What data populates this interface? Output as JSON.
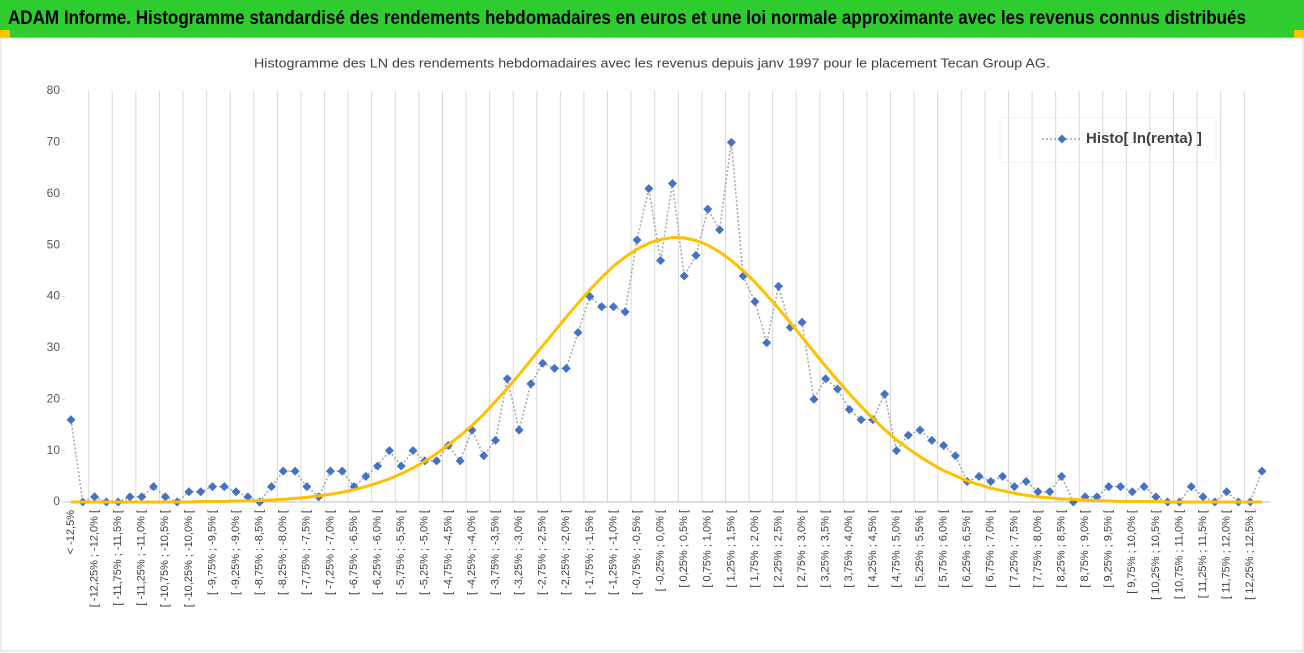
{
  "header": {
    "title": "ADAM Informe. Histogramme standardisé des rendements hebdomadaires en euros et une loi normale approximante avec les revenus connus distribués"
  },
  "chart_data": {
    "type": "line",
    "title": "Histogramme des LN des rendements hebdomadaires avec les revenus depuis janv 1997 pour le placement Tecan Group AG.",
    "categories": [
      "< -12,5%",
      null,
      "[ -12,25% ; -12,0% [",
      null,
      "[ -11,75% ; -11,5% [",
      null,
      "[ -11,25% ; -11,0% [",
      null,
      "[ -10,75% ; -10,5% [",
      null,
      "[ -10,25% ; -10,0% [",
      null,
      "[ -9,75% ; -9,5% [",
      null,
      "[ -9,25% ; -9,0% [",
      null,
      "[ -8,75% ; -8,5% [",
      null,
      "[ -8,25% ; -8,0% [",
      null,
      "[ -7,75% ; -7,5% [",
      null,
      "[ -7,25% ; -7,0% [",
      null,
      "[ -6,75% ; -6,5% [",
      null,
      "[ -6,25% ; -6,0% [",
      null,
      "[ -5,75% ; -5,5% [",
      null,
      "[ -5,25% ; -5,0% [",
      null,
      "[ -4,75% ; -4,5% [",
      null,
      "[ -4,25% ; -4,0% [",
      null,
      "[ -3,75% ; -3,5% [",
      null,
      "[ -3,25% ; -3,0% [",
      null,
      "[ -2,75% ; -2,5% [",
      null,
      "[ -2,25% ; -2,0% [",
      null,
      "[ -1,75% ; -1,5% [",
      null,
      "[ -1,25% ; -1,0% [",
      null,
      "[ -0,75% ; -0,5% [",
      null,
      "[ -0,25% ; 0,0% [",
      null,
      "[ 0,25% ; 0,5% [",
      null,
      "[ 0,75% ; 1,0% [",
      null,
      "[ 1,25% ; 1,5% [",
      null,
      "[ 1,75% ; 2,0% [",
      null,
      "[ 2,25% ; 2,5% [",
      null,
      "[ 2,75% ; 3,0% [",
      null,
      "[ 3,25% ; 3,5% [",
      null,
      "[ 3,75% ; 4,0% [",
      null,
      "[ 4,25% ; 4,5% [",
      null,
      "[ 4,75% ; 5,0% [",
      null,
      "[ 5,25% ; 5,5% [",
      null,
      "[ 5,75% ; 6,0% [",
      null,
      "[ 6,25% ; 6,5% [",
      null,
      "[ 6,75% ; 7,0% [",
      null,
      "[ 7,25% ; 7,5% [",
      null,
      "[ 7,75% ; 8,0% [",
      null,
      "[ 8,25% ; 8,5% [",
      null,
      "[ 8,75% ; 9,0% [",
      null,
      "[ 9,25% ; 9,5% [",
      null,
      "[ 9,75% ; 10,0% [",
      null,
      "[ 10,25% ; 10,5% [",
      null,
      "[ 10,75% ; 11,0% [",
      null,
      "[ 11,25% ; 11,5% [",
      null,
      "[ 11,75% ; 12,0% [",
      null,
      "[ 12,25% ; 12,5% [",
      null
    ],
    "series": [
      {
        "name": "Histo[ ln(renta) ]",
        "color": "#4472c4",
        "line_color": "#a6a6a6",
        "marker": "diamond",
        "values": [
          16,
          0,
          1,
          0,
          0,
          1,
          1,
          3,
          1,
          0,
          2,
          2,
          3,
          3,
          2,
          1,
          0,
          3,
          6,
          6,
          3,
          1,
          6,
          6,
          3,
          5,
          7,
          10,
          7,
          10,
          8,
          8,
          11,
          8,
          14,
          9,
          12,
          24,
          14,
          23,
          27,
          26,
          26,
          33,
          40,
          38,
          38,
          37,
          51,
          61,
          47,
          62,
          44,
          48,
          57,
          53,
          70,
          44,
          39,
          31,
          42,
          34,
          35,
          20,
          24,
          22,
          18,
          16,
          16,
          21,
          10,
          13,
          14,
          12,
          11,
          9,
          4,
          5,
          4,
          5,
          3,
          4,
          2,
          2,
          5,
          0,
          1,
          1,
          3,
          3,
          2,
          3,
          1,
          0,
          0,
          3,
          1,
          0,
          2,
          0,
          0,
          6
        ]
      },
      {
        "color": "#ffc000",
        "values": [
          0,
          0,
          0,
          0,
          0,
          0,
          0,
          0,
          0,
          0,
          0,
          0.1,
          0.1,
          0.1,
          0.2,
          0.2,
          0.3,
          0.4,
          0.5,
          0.7,
          0.9,
          1.2,
          1.5,
          1.9,
          2.4,
          3.0,
          3.7,
          4.5,
          5.5,
          6.6,
          7.9,
          9.4,
          11.1,
          12.9,
          14.9,
          17.1,
          19.6,
          22.1,
          24.8,
          27.6,
          30.4,
          33.2,
          36.0,
          38.7,
          41.3,
          43.7,
          45.9,
          47.7,
          49.2,
          50.4,
          51.1,
          51.5,
          51.4,
          50.9,
          50.0,
          48.7,
          47.0,
          45.0,
          42.8,
          40.3,
          37.7,
          34.9,
          32.1,
          29.2,
          26.4,
          23.7,
          21.1,
          18.6,
          16.3,
          14.1,
          12.1,
          10.4,
          8.8,
          7.4,
          6.1,
          5.1,
          4.1,
          3.4,
          2.7,
          2.2,
          1.7,
          1.3,
          1.0,
          0.8,
          0.6,
          0.5,
          0.4,
          0.3,
          0.2,
          0.1,
          0.1,
          0.1,
          0.1,
          0,
          0,
          0,
          0,
          0,
          0,
          0,
          0,
          0
        ]
      }
    ],
    "ylim": [
      0,
      80
    ],
    "yticks": [
      0,
      10,
      20,
      30,
      40,
      50,
      60,
      70,
      80
    ],
    "legend": "top-right"
  }
}
